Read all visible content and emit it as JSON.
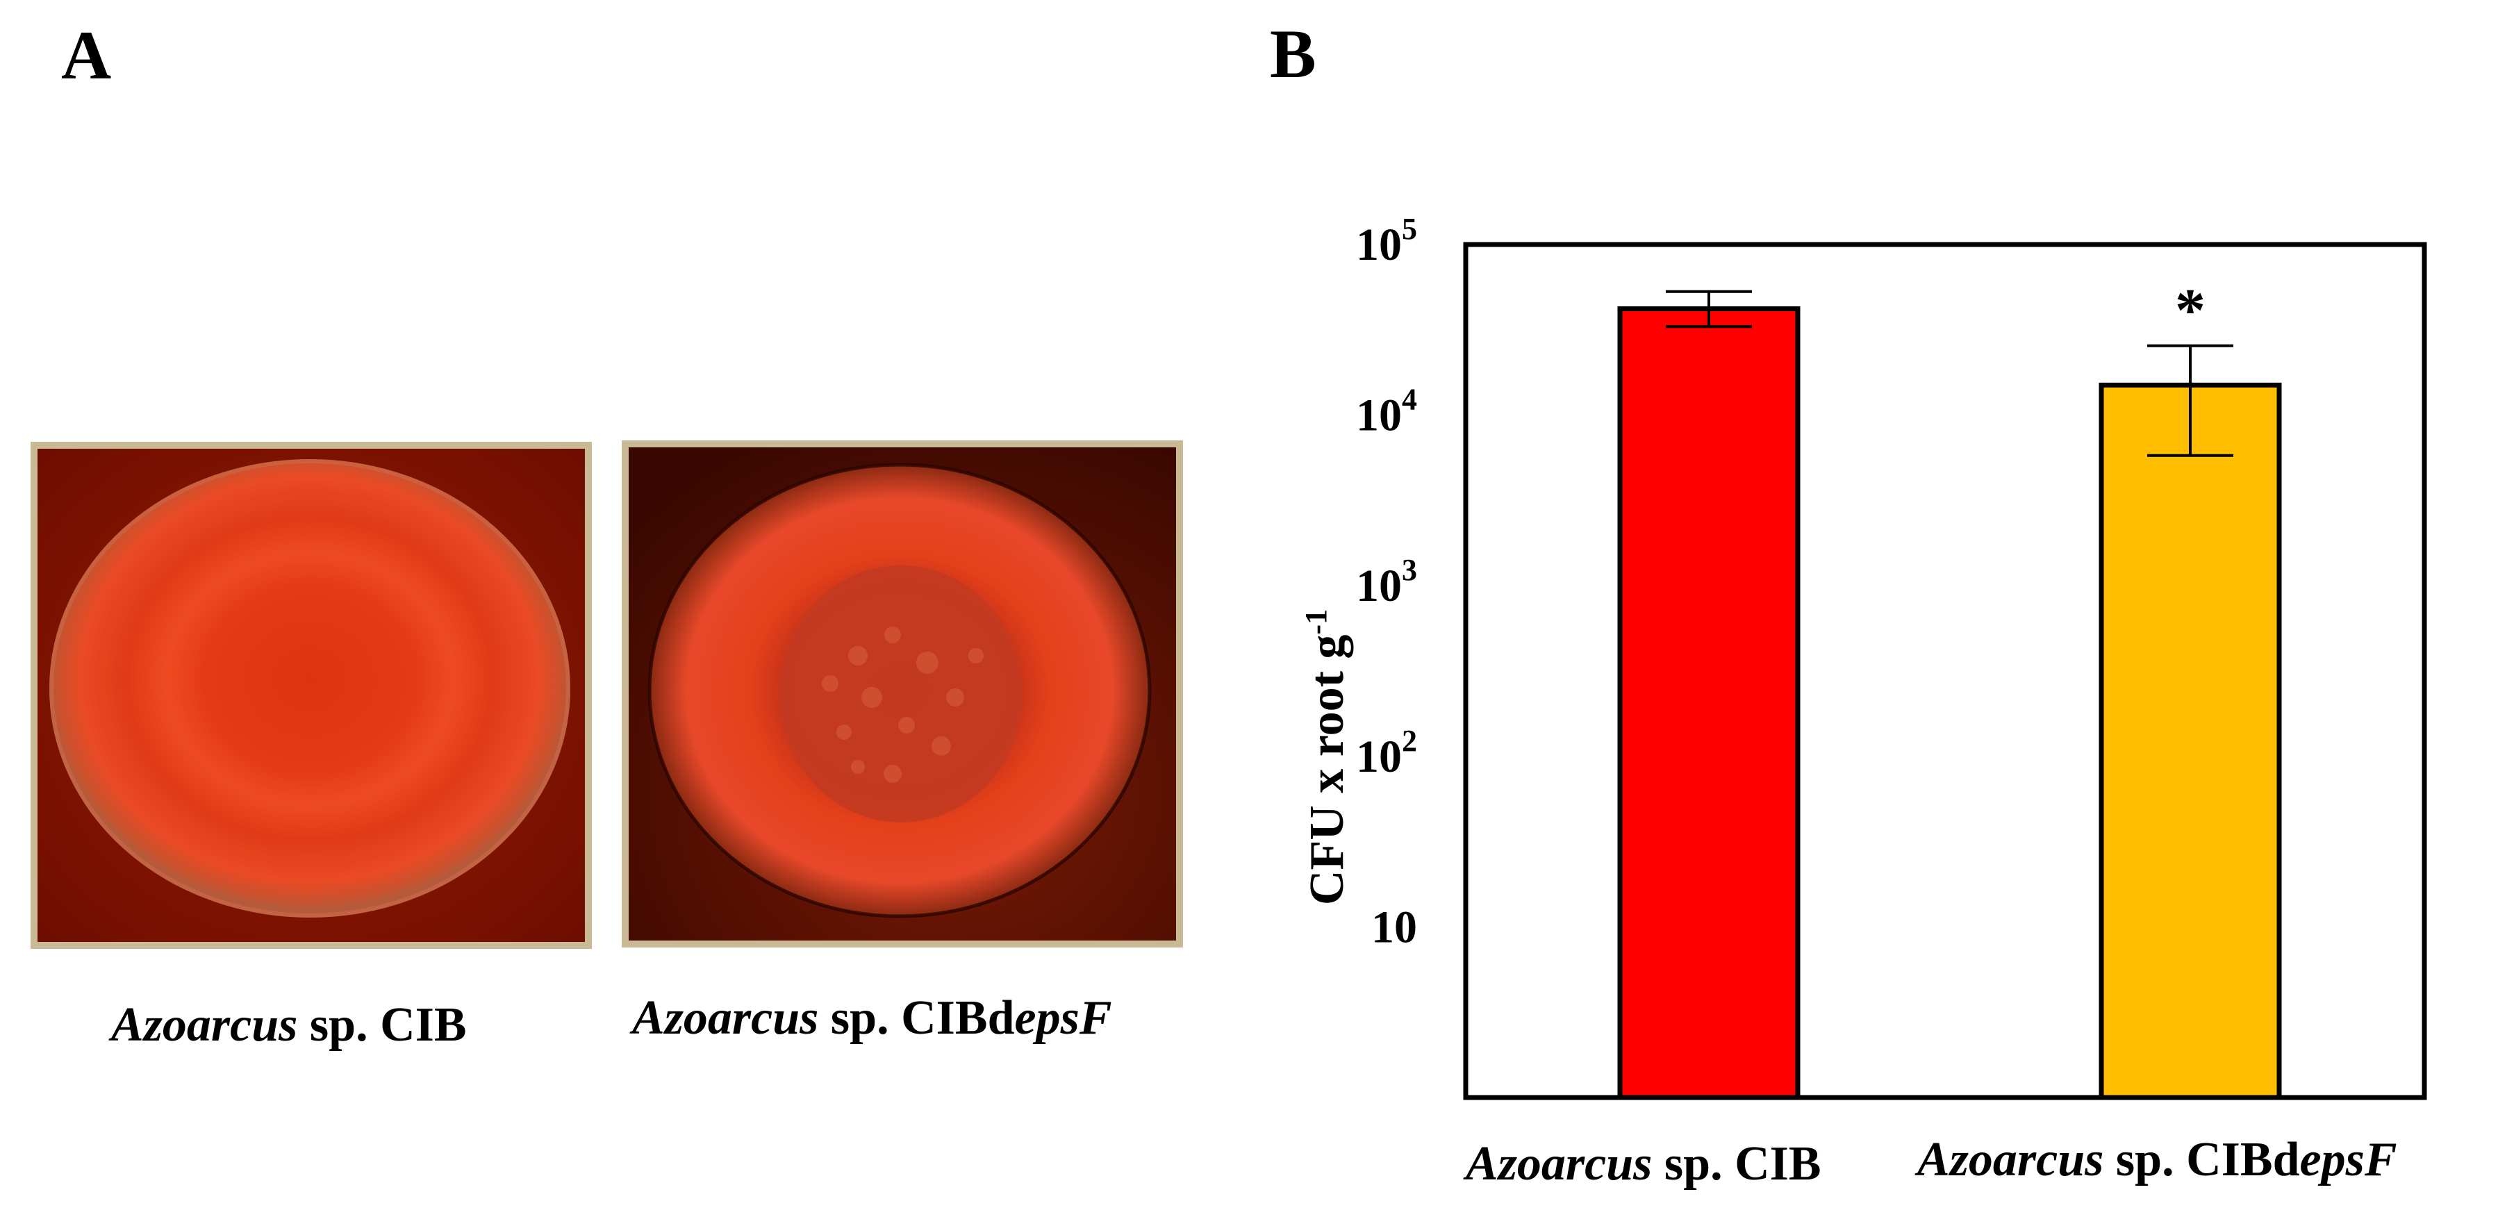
{
  "panels": {
    "a": {
      "letter": "A",
      "captions": [
        {
          "genus": "Azoarcus",
          "rest": " sp. CIB",
          "suffix_italic": ""
        },
        {
          "genus": "Azoarcus",
          "rest": " sp. CIBd",
          "suffix_italic": "epsF"
        }
      ]
    },
    "b": {
      "letter": "B"
    }
  },
  "colors": {
    "wt_bar": "#ff0000",
    "mutant_bar": "#ffbf00",
    "plate_bg": "#7a1100",
    "colony": "#e8341a",
    "frame": "#c9b994"
  },
  "chart_data": {
    "type": "bar",
    "categories": [
      "Azoarcus sp. CIB",
      "Azoarcus sp. CIBdepsF"
    ],
    "category_parts": [
      {
        "italic": "Azoarcus",
        "plain": " sp. CIB",
        "italic2": ""
      },
      {
        "italic": "Azoarcus",
        "plain": " sp. CIBd",
        "italic2": "epsF"
      }
    ],
    "values": [
      42000,
      15000
    ],
    "errors": [
      [
        33000,
        53000
      ],
      [
        5800,
        25500
      ]
    ],
    "significance": [
      "",
      "*"
    ],
    "ylabel": "CFU x  root g-1",
    "ylabel_parts": {
      "main": "CFU x  root g",
      "sup": "-1"
    },
    "yscale": "log",
    "ylim": [
      1,
      100000
    ],
    "yticks": [
      {
        "value": 10,
        "base": "10",
        "exp": ""
      },
      {
        "value": 100,
        "base": "10",
        "exp": "2"
      },
      {
        "value": 1000,
        "base": "10",
        "exp": "3"
      },
      {
        "value": 10000,
        "base": "10",
        "exp": "4"
      },
      {
        "value": 100000,
        "base": "10",
        "exp": "5"
      }
    ],
    "grid": false,
    "legend": "none"
  }
}
